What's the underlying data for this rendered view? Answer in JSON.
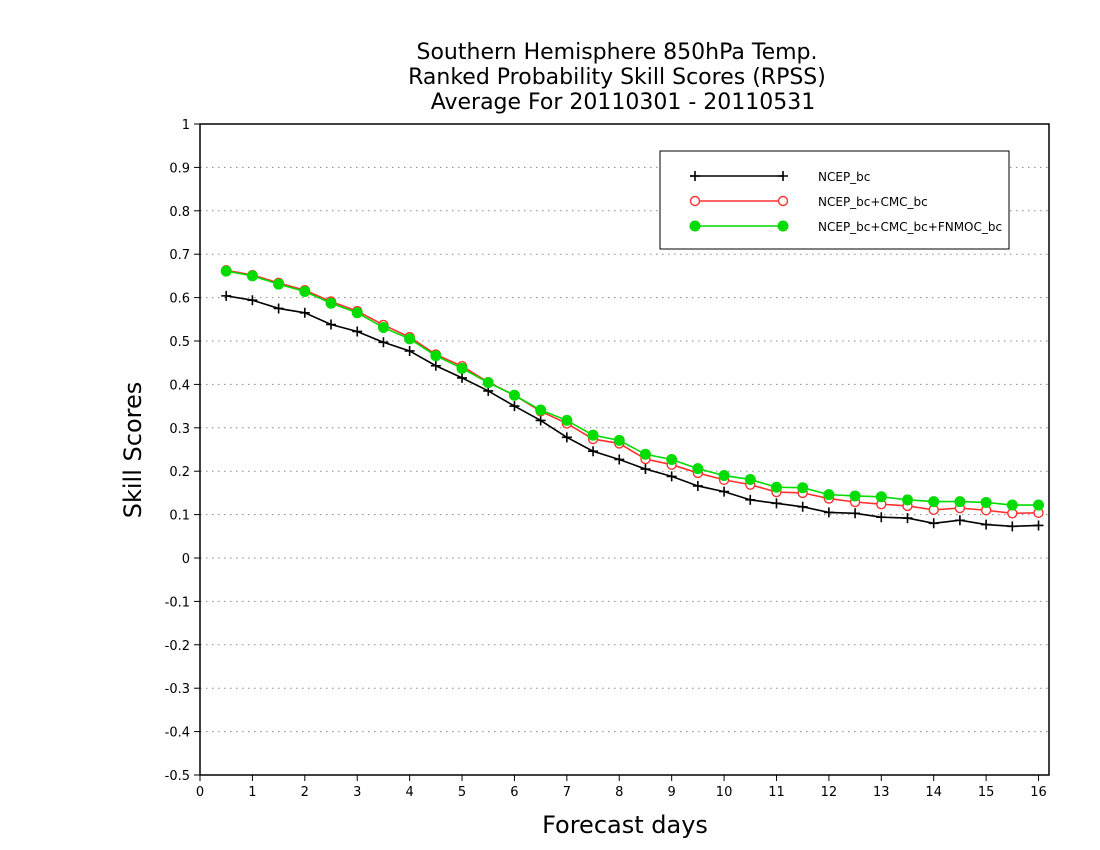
{
  "chart_data": {
    "type": "line",
    "title": [
      "Southern Hemisphere 850hPa Temp.",
      "Ranked Probability Skill Scores (RPSS)",
      "Average For 20110301 - 20110531"
    ],
    "xlabel": "Forecast days",
    "ylabel": "Skill Scores",
    "xlim": [
      0,
      16.2
    ],
    "ylim": [
      -0.5,
      1
    ],
    "xticks": [
      0,
      1,
      2,
      3,
      4,
      5,
      6,
      7,
      8,
      9,
      10,
      11,
      12,
      13,
      14,
      15,
      16
    ],
    "yticks": [
      -0.5,
      -0.4,
      -0.3,
      -0.2,
      -0.1,
      0,
      0.1,
      0.2,
      0.3,
      0.4,
      0.5,
      0.6,
      0.7,
      0.8,
      0.9,
      1
    ],
    "ytick_labels": [
      "-0.5",
      "-0.4",
      "-0.3",
      "-0.2",
      "-0.1",
      "0",
      "0.1",
      "0.2",
      "0.3",
      "0.4",
      "0.5",
      "0.6",
      "0.7",
      "0.8",
      "0.9",
      "1"
    ],
    "grid": "horizontal dotted",
    "legend_position": "top-right",
    "x": [
      0.5,
      1,
      1.5,
      2,
      2.5,
      3,
      3.5,
      4,
      4.5,
      5,
      5.5,
      6,
      6.5,
      7,
      7.5,
      8,
      8.5,
      9,
      9.5,
      10,
      10.5,
      11,
      11.5,
      12,
      12.5,
      13,
      13.5,
      14,
      14.5,
      15,
      15.5,
      16
    ],
    "series": [
      {
        "name": "NCEP_bc",
        "color": "#000000",
        "marker": "plus",
        "values": [
          0.604,
          0.594,
          0.575,
          0.565,
          0.538,
          0.522,
          0.497,
          0.477,
          0.443,
          0.415,
          0.385,
          0.35,
          0.317,
          0.278,
          0.246,
          0.227,
          0.205,
          0.188,
          0.166,
          0.153,
          0.134,
          0.126,
          0.118,
          0.105,
          0.103,
          0.094,
          0.092,
          0.08,
          0.087,
          0.077,
          0.073,
          0.075
        ]
      },
      {
        "name": "NCEP_bc+CMC_bc",
        "color": "#ff3030",
        "marker": "open-circle",
        "values": [
          0.663,
          0.652,
          0.634,
          0.617,
          0.591,
          0.569,
          0.537,
          0.509,
          0.469,
          0.442,
          0.405,
          0.375,
          0.338,
          0.31,
          0.274,
          0.264,
          0.228,
          0.215,
          0.196,
          0.18,
          0.169,
          0.152,
          0.15,
          0.137,
          0.129,
          0.124,
          0.12,
          0.111,
          0.115,
          0.11,
          0.103,
          0.104
        ]
      },
      {
        "name": "NCEP_bc+CMC_bc+FNMOC_bc",
        "color": "#00dc00",
        "marker": "filled-circle",
        "values": [
          0.661,
          0.65,
          0.631,
          0.614,
          0.587,
          0.565,
          0.531,
          0.505,
          0.466,
          0.437,
          0.404,
          0.375,
          0.341,
          0.317,
          0.283,
          0.271,
          0.239,
          0.227,
          0.206,
          0.19,
          0.181,
          0.163,
          0.162,
          0.146,
          0.143,
          0.141,
          0.134,
          0.13,
          0.13,
          0.128,
          0.122,
          0.122
        ]
      }
    ]
  }
}
